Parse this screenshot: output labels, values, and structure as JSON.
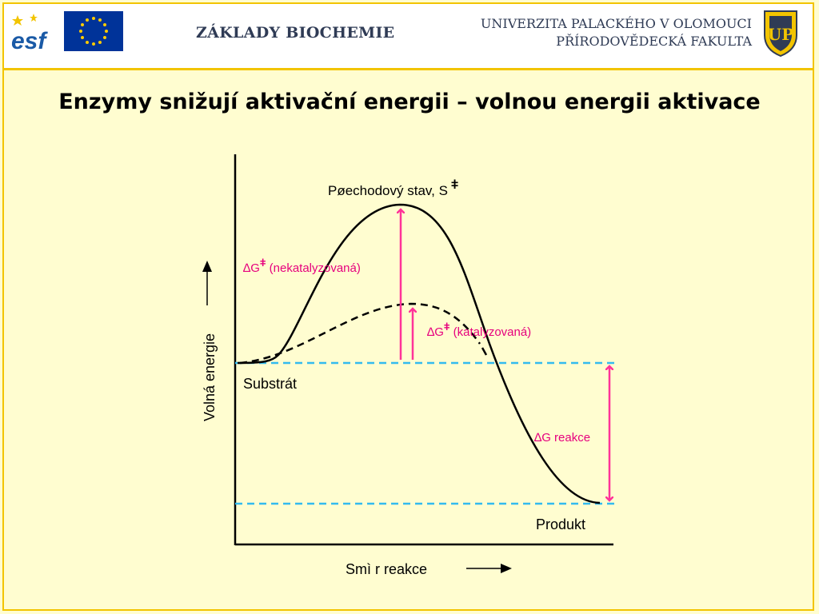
{
  "header": {
    "course_title": "ZÁKLADY BIOCHEMIE",
    "university_line1": "UNIVERZITA PALACKÉHO V OLOMOUCI",
    "university_line2": "PŘÍRODOVĚDECKÁ FAKULTA",
    "esf_logo_text": "esf",
    "upol_logo_text": "UP"
  },
  "slide": {
    "title": "Enzymy snižují aktivační energii – volnou energii aktivace"
  },
  "diagram": {
    "transition_state_label": "Pøechodový stav, S",
    "double_dagger": "ǂ",
    "delta": "∆",
    "uncatalyzed_g": "G",
    "uncatalyzed_label": " (nekatalyzovaná)",
    "catalyzed_g": "G",
    "catalyzed_label": " (katalyzovaná)",
    "reaction_label": "G reakce",
    "substrate_label": "Substrát",
    "product_label": "Produkt",
    "y_axis_label": "Volná energie",
    "x_axis_label": "Smì r reakce",
    "colors": {
      "arrow": "#ff3399",
      "arrow_text": "#e6007e",
      "reference_line": "#33bbee",
      "curve": "#000000",
      "accent": "#f2c400"
    }
  }
}
